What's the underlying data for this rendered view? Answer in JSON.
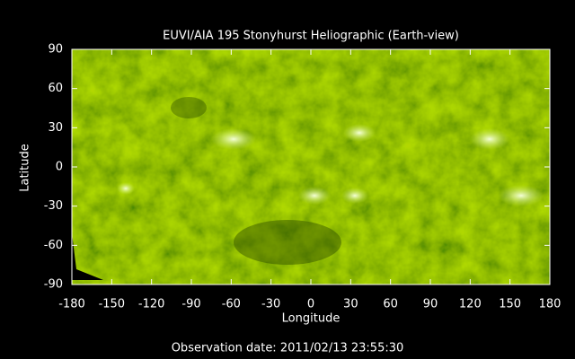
{
  "chart_data": {
    "type": "image",
    "title": "EUVI/AIA 195 Stonyhurst Heliographic (Earth-view)",
    "xlabel": "Longitude",
    "ylabel": "Latitude",
    "footer": "Observation date: 2011/02/13 23:55:30",
    "xlim": [
      -180,
      180
    ],
    "ylim": [
      -90,
      90
    ],
    "xticks": [
      -180,
      -150,
      -120,
      -90,
      -60,
      -30,
      0,
      30,
      60,
      90,
      120,
      150,
      180
    ],
    "yticks": [
      -90,
      -60,
      -30,
      0,
      30,
      60,
      90
    ]
  }
}
